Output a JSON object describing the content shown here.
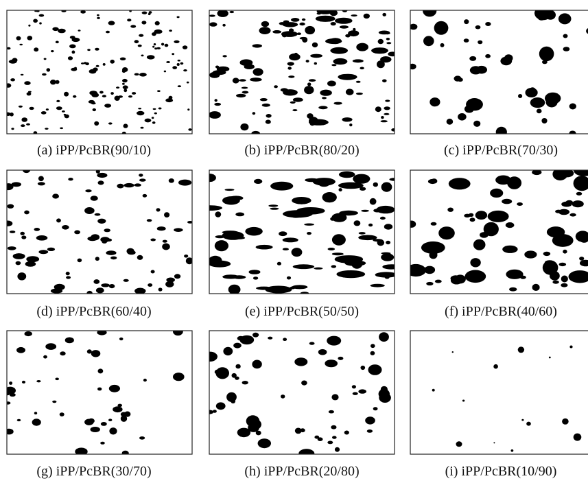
{
  "panels": [
    {
      "caption": "(a) iPP/PcBR(90/10)"
    },
    {
      "caption": "(b) iPP/PcBR(80/20)"
    },
    {
      "caption": "(c) iPP/PcBR(70/30)"
    },
    {
      "caption": "(d) iPP/PcBR(60/40)"
    },
    {
      "caption": "(e) iPP/PcBR(50/50)"
    },
    {
      "caption": "(f) iPP/PcBR(40/60)"
    },
    {
      "caption": "(g) iPP/PcBR(30/70)"
    },
    {
      "caption": "(h) iPP/PcBR(20/80)"
    },
    {
      "caption": "(i) iPP/PcBR(10/90)"
    }
  ]
}
